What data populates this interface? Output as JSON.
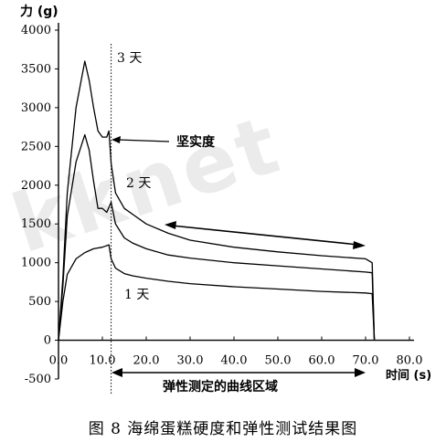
{
  "watermark": "kknet",
  "caption": "图 8   海绵蛋糕硬度和弹性测试结果图",
  "chart_data": {
    "type": "line",
    "ylabel": "力 (g)",
    "xlabel": "时间 (s)",
    "xlim": [
      0,
      80
    ],
    "ylim": [
      -500,
      4000
    ],
    "x_ticks": [
      0,
      10,
      20,
      30,
      40,
      50,
      60,
      70,
      80
    ],
    "x_tick_labels": [
      "0.0",
      "10.0",
      "20.0",
      "30.0",
      "40.0",
      "50.0",
      "60.0",
      "70.0",
      "80.0"
    ],
    "y_ticks": [
      -500,
      0,
      500,
      1000,
      1500,
      2000,
      2500,
      3000,
      3500,
      4000
    ],
    "y_tick_labels": [
      "-500",
      "0",
      "500",
      "1000",
      "1500",
      "2000",
      "2500",
      "3000",
      "3500",
      "4000"
    ],
    "grid": false,
    "marker_line_x": 12,
    "series": [
      {
        "name": "3 天",
        "x": [
          0,
          1,
          2,
          4,
          6,
          7,
          8,
          9,
          10,
          11,
          11.5,
          12,
          13,
          15,
          17,
          20,
          25,
          30,
          40,
          50,
          60,
          70,
          71.5,
          72
        ],
        "y": [
          0,
          800,
          1900,
          3000,
          3600,
          3350,
          3000,
          2700,
          2620,
          2620,
          2700,
          2280,
          1900,
          1700,
          1620,
          1500,
          1380,
          1290,
          1200,
          1140,
          1090,
          1050,
          1000,
          0
        ]
      },
      {
        "name": "2 天",
        "x": [
          0,
          1,
          2,
          4,
          6,
          7,
          8,
          9,
          10,
          11,
          12,
          13,
          15,
          17,
          20,
          25,
          30,
          40,
          50,
          60,
          70,
          71.5,
          72
        ],
        "y": [
          0,
          700,
          1600,
          2300,
          2650,
          2450,
          2050,
          1700,
          1700,
          1650,
          1780,
          1500,
          1320,
          1250,
          1180,
          1100,
          1060,
          1000,
          960,
          920,
          880,
          870,
          0
        ]
      },
      {
        "name": "1 天",
        "x": [
          0,
          1,
          2,
          4,
          6,
          8,
          10,
          11.5,
          12,
          13,
          15,
          17,
          20,
          25,
          30,
          40,
          50,
          60,
          70,
          71.5,
          72
        ],
        "y": [
          0,
          500,
          850,
          1050,
          1130,
          1180,
          1200,
          1230,
          1050,
          930,
          860,
          830,
          800,
          760,
          730,
          690,
          660,
          630,
          610,
          600,
          0
        ]
      }
    ],
    "annotations": {
      "hardness": "坚实度",
      "elasticity_region": "弹性测定的曲线区域",
      "day3": "3 天",
      "day2": "2 天",
      "day1": "1 天"
    }
  }
}
